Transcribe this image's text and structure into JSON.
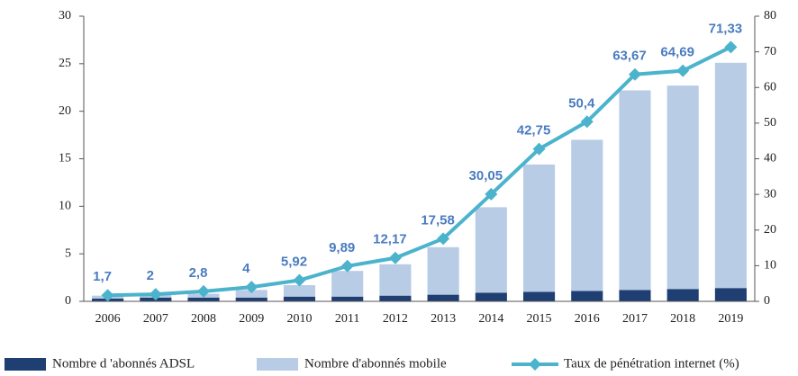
{
  "chart_data": {
    "type": "bar",
    "categories": [
      "2006",
      "2007",
      "2008",
      "2009",
      "2010",
      "2011",
      "2012",
      "2013",
      "2014",
      "2015",
      "2016",
      "2017",
      "2018",
      "2019"
    ],
    "series": [
      {
        "name": "Nombre d 'abonnés ADSL",
        "type": "bar",
        "color": "#1f3f73",
        "values": [
          0.3,
          0.4,
          0.4,
          0.4,
          0.5,
          0.5,
          0.6,
          0.7,
          0.9,
          1.0,
          1.1,
          1.2,
          1.3,
          1.4
        ]
      },
      {
        "name": "Nombre d'abonnés  mobile",
        "type": "bar",
        "color": "#b9cce6",
        "values": [
          0.3,
          0.5,
          0.4,
          0.8,
          1.2,
          2.7,
          3.3,
          5.0,
          9.0,
          13.4,
          15.9,
          21.0,
          21.4,
          23.7
        ]
      },
      {
        "name": "Taux de pénétration internet (%)",
        "type": "line",
        "axis": "y2",
        "color": "#4bb3cc",
        "values": [
          1.7,
          2,
          2.8,
          4,
          5.92,
          9.89,
          12.17,
          17.58,
          30.05,
          42.75,
          50.4,
          63.67,
          64.69,
          71.33
        ],
        "value_labels": [
          "1,7",
          "2",
          "2,8",
          "4",
          "5,92",
          "9,89",
          "12,17",
          "17,58",
          "30,05",
          "42,75",
          "50,4",
          "63,67",
          "64,69",
          "71,33"
        ]
      }
    ],
    "stacked": true,
    "ylim": [
      0,
      30
    ],
    "yticks": [
      0,
      5,
      10,
      15,
      20,
      25,
      30
    ],
    "y2lim": [
      0,
      80
    ],
    "y2ticks": [
      0,
      10,
      20,
      30,
      40,
      50,
      60,
      70,
      80
    ],
    "legend": "bottom"
  }
}
